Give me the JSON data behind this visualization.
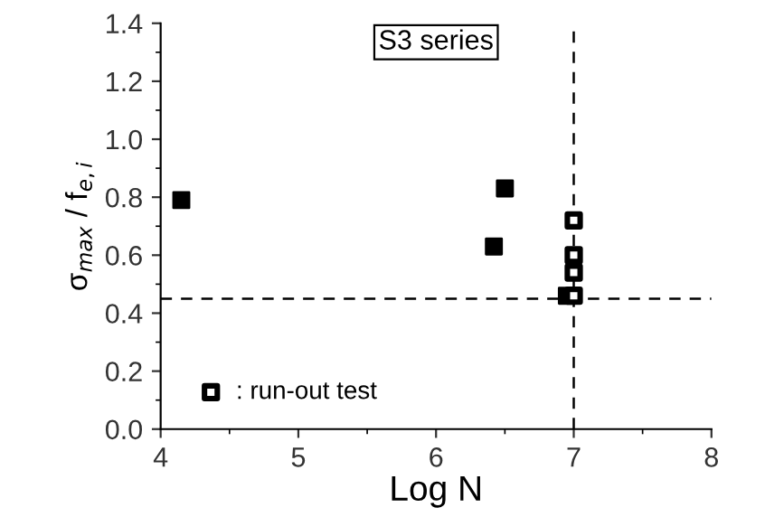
{
  "chart_data": {
    "type": "scatter",
    "title": "S3 series",
    "xlabel": "Log N",
    "ylabel": "σ$_{max}$ / f$_{e,i}$",
    "series": [
      {
        "color": "#000000",
        "x": [
          4.15,
          6.42,
          6.5,
          6.95
        ],
        "values": [
          0.79,
          0.63,
          0.83,
          0.46
        ]
      },
      {
        "name": ": run-out test",
        "color": "#000000",
        "x": [
          7.0,
          7.0,
          7.0,
          7.0
        ],
        "values": [
          0.72,
          0.6,
          0.54,
          0.46
        ]
      }
    ],
    "xlim": [
      4,
      8
    ],
    "xticks": [
      4,
      5,
      6,
      7,
      8
    ],
    "ylim": [
      0,
      1.4
    ],
    "yticks": [
      {
        "value": 0,
        "label": "0.0"
      },
      0.2,
      0.4,
      0.6,
      0.8,
      {
        "value": 1,
        "label": "1.0"
      },
      1.2,
      1.4
    ],
    "ref_lines": [
      {
        "axis": "y",
        "value": 0.45,
        "color": "#000000",
        "line_style": "dashed"
      },
      {
        "axis": "x",
        "value": 7,
        "color": "#000000",
        "line_style": "dashed"
      }
    ],
    "marker": "square",
    "grid": false,
    "legend": "bottom left"
  }
}
